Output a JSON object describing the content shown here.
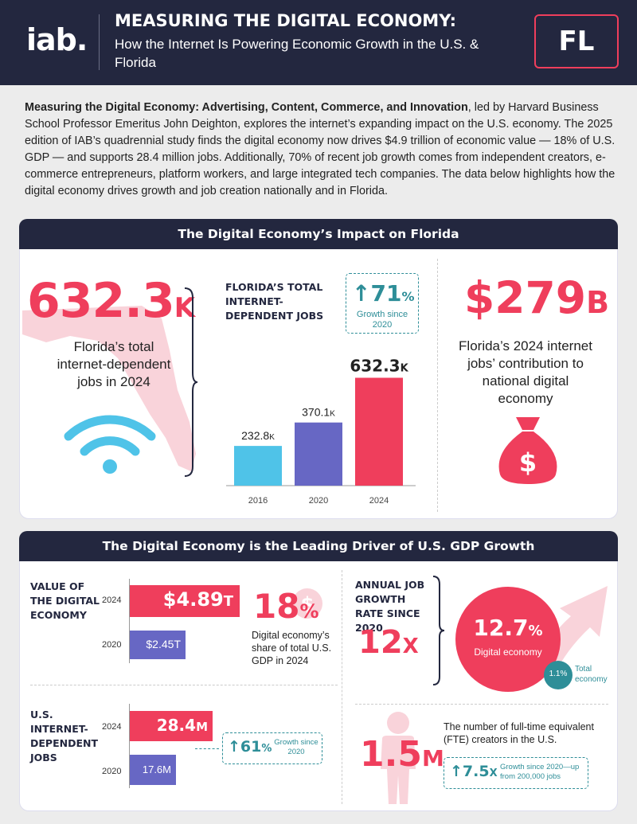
{
  "header": {
    "logo": "iab.",
    "title": "MEASURING THE DIGITAL ECONOMY:",
    "subtitle": "How the Internet Is Powering Economic Growth in the U.S. & Florida",
    "state_code": "FL"
  },
  "intro": {
    "bold": "Measuring the Digital Economy: Advertising, Content, Commerce, and Innovation",
    "text": ", led by Harvard Business School Professor Emeritus John Deighton, explores the internet’s expanding impact on the U.S. economy. The 2025 edition of IAB’s quadrennial study finds the digital economy now drives $4.9 trillion of economic value — 18% of U.S. GDP — and supports 28.4 million jobs. Additionally, 70% of recent job growth comes from independent creators, e-commerce entrepreneurs, platform workers, and large integrated tech companies. The data below highlights how the digital economy drives growth and job creation nationally and in Florida."
  },
  "section1": {
    "title": "The Digital Economy’s Impact on Florida",
    "jobs_value": "632.3",
    "jobs_unit": "K",
    "jobs_label": "Florida’s total internet-dependent jobs in 2024",
    "chart_title": "FLORIDA’S TOTAL INTERNET-DEPENDENT JOBS",
    "growth_value": "71",
    "growth_unit": "%",
    "growth_label": "Growth since 2020",
    "contribution_value": "$279",
    "contribution_unit": "B",
    "contribution_label": "Florida’s 2024 internet jobs’ contribution to national digital economy",
    "money_symbol": "$"
  },
  "chart_data": {
    "type": "bar",
    "title": "FLORIDA’S TOTAL INTERNET-DEPENDENT JOBS",
    "categories": [
      "2016",
      "2020",
      "2024"
    ],
    "values": [
      232.8,
      370.1,
      632.3
    ],
    "value_labels": [
      "232.8",
      "370.1",
      "632.3"
    ],
    "value_unit": "K",
    "colors": [
      "#4fc3e8",
      "#6767c4",
      "#ef3e5c"
    ],
    "ylim": [
      0,
      700
    ]
  },
  "section2": {
    "title": "The Digital Economy is the Leading Driver of U.S. GDP Growth",
    "value_title": "VALUE OF THE DIGITAL ECONOMY",
    "value_2024_year": "2024",
    "value_2024": "$4.89",
    "value_2024_unit": "T",
    "value_2020_year": "2020",
    "value_2020": "$2.45",
    "value_2020_unit": "T",
    "gdp_share": "18",
    "gdp_share_unit": "%",
    "gdp_share_label": "Digital economy’s share of total U.S. GDP in 2024",
    "dollar_symbol": "$",
    "jobs_title": "U.S. INTERNET-DEPENDENT JOBS",
    "jobs_2024_year": "2024",
    "jobs_2024": "28.4",
    "jobs_2024_unit": "M",
    "jobs_2020_year": "2020",
    "jobs_2020": "17.6M",
    "jobs_growth": "61",
    "jobs_growth_unit": "%",
    "jobs_growth_label": "Growth since 2020",
    "annual_title": "ANNUAL JOB GROWTH RATE SINCE 2020",
    "annual_multiple": "12",
    "annual_multiple_unit": "X",
    "digital_rate": "12.7",
    "digital_rate_unit": "%",
    "digital_rate_label": "Digital economy",
    "total_rate": "1.1%",
    "total_rate_label": "Total economy",
    "creators_value": "1.5",
    "creators_unit": "M",
    "creators_label": "The number of full-time equivalent (FTE) creators in the U.S.",
    "creators_growth": "7.5",
    "creators_growth_unit": "X",
    "creators_growth_label": "Growth since 2020—up from 200,000 jobs"
  },
  "colors": {
    "navy": "#23273f",
    "pink": "#ef3e5c",
    "light_pink": "#f9d3da",
    "blue": "#4fc3e8",
    "purple": "#6767c4",
    "teal": "#2e8e98"
  }
}
